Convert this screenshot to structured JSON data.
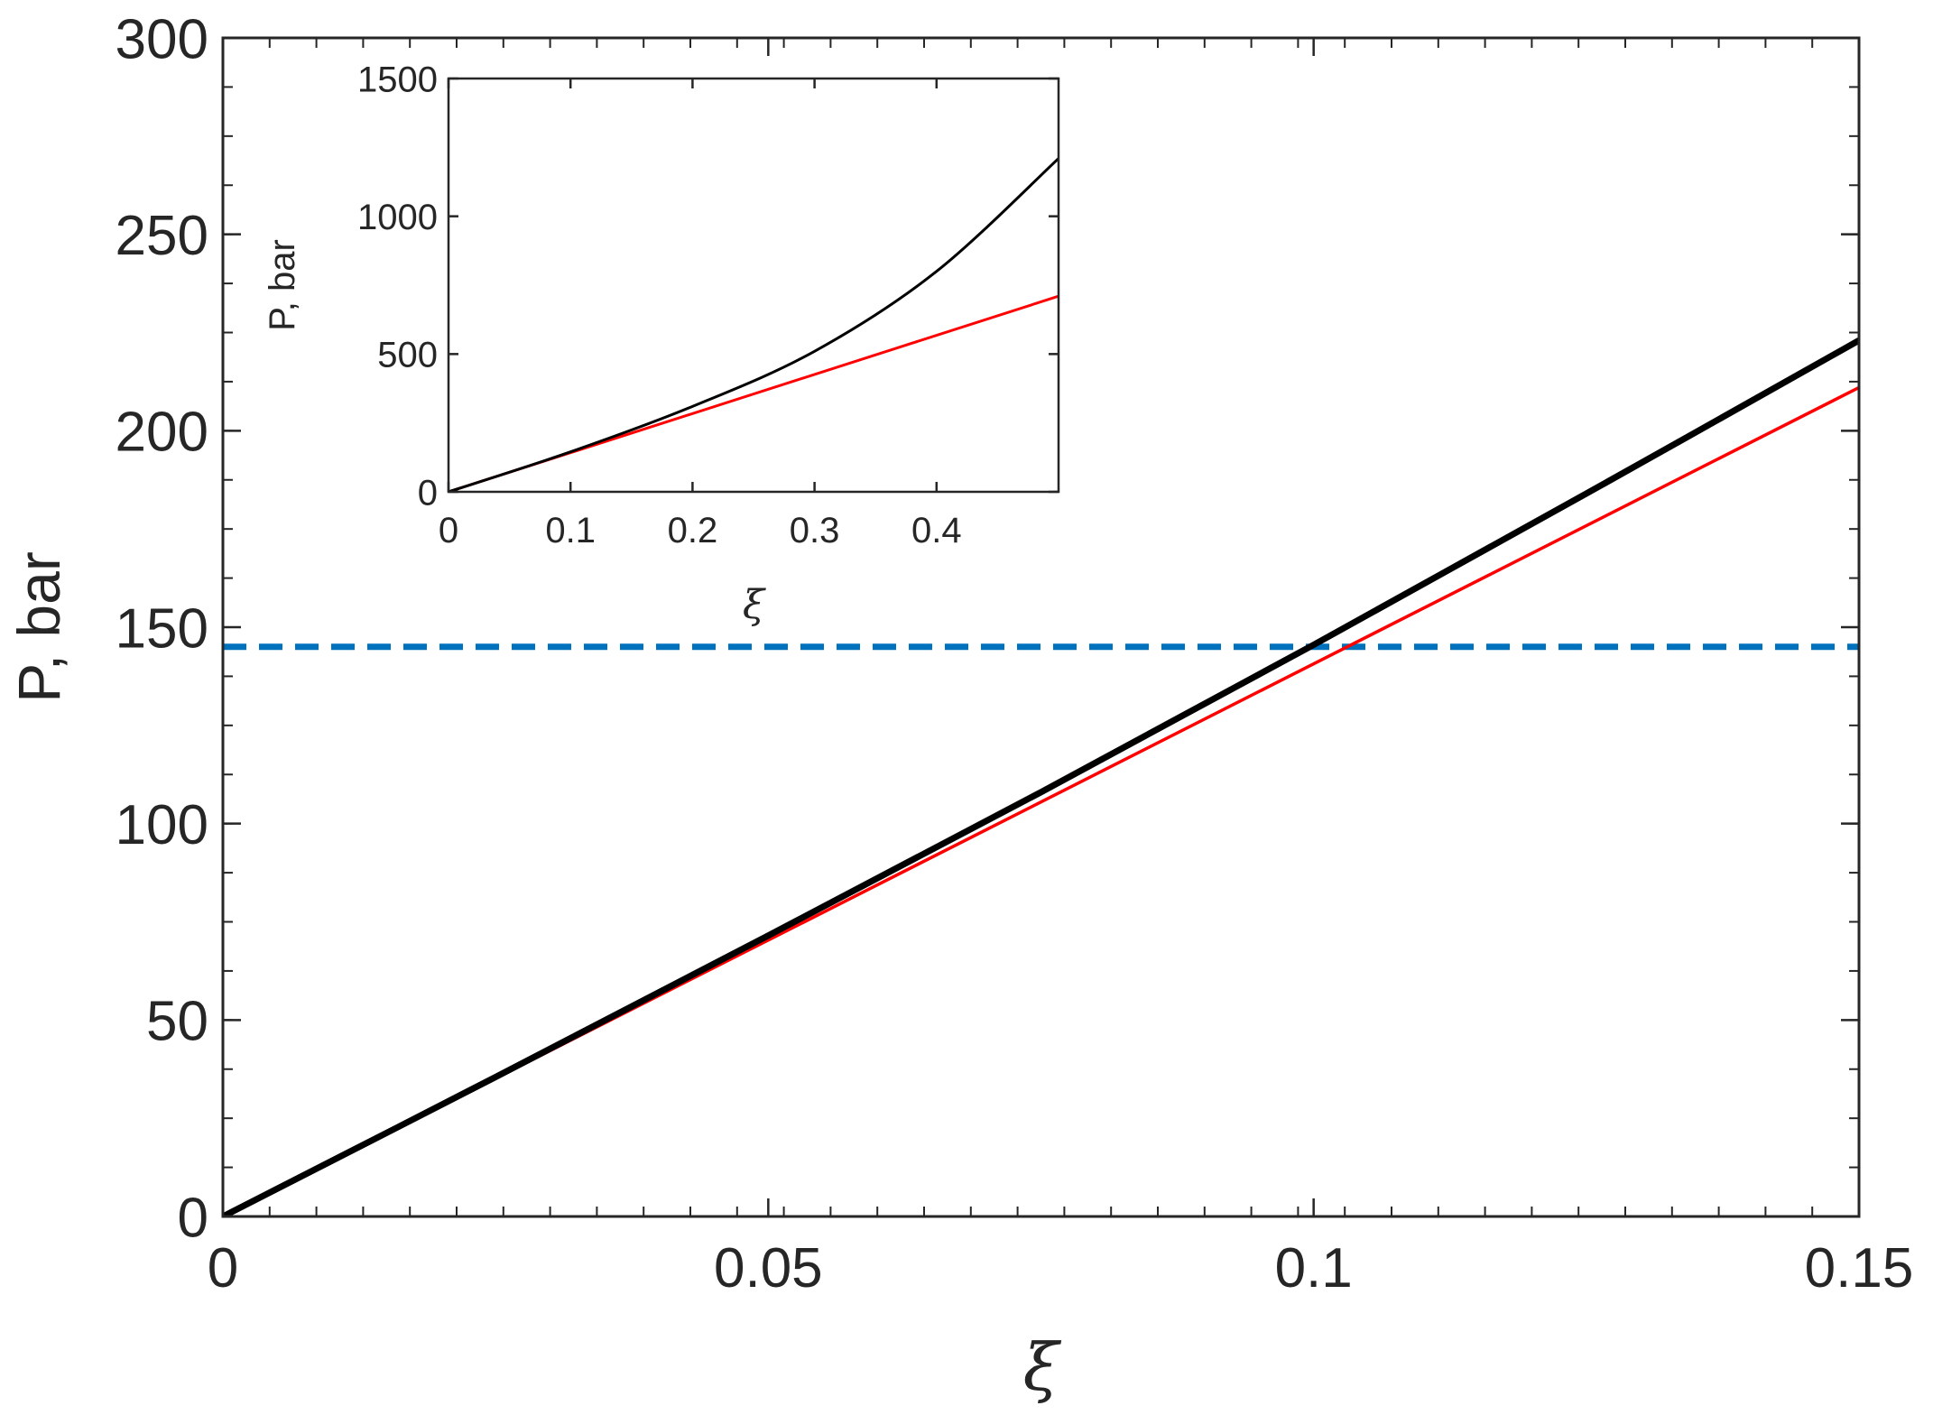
{
  "chart_data": [
    {
      "type": "line",
      "role": "main",
      "xlabel": "ξ",
      "ylabel": "P, bar",
      "xlim": [
        0,
        0.15
      ],
      "ylim": [
        0,
        300
      ],
      "x_ticks": [
        0,
        0.05,
        0.1,
        0.15
      ],
      "x_tick_labels": [
        "0",
        "0.05",
        "0.1",
        "0.15"
      ],
      "y_ticks": [
        0,
        50,
        100,
        150,
        200,
        250,
        300
      ],
      "y_tick_labels": [
        "0",
        "50",
        "100",
        "150",
        "200",
        "250",
        "300"
      ],
      "grid": false,
      "box": true,
      "series": [
        {
          "style": "solid",
          "color": "#000000",
          "width": "thick",
          "x": [
            0,
            0.025,
            0.05,
            0.075,
            0.1,
            0.125,
            0.15
          ],
          "y": [
            0,
            35.5,
            71.5,
            108,
            145.5,
            184,
            223
          ]
        },
        {
          "style": "solid",
          "color": "#ff0000",
          "width": "thin",
          "x": [
            0,
            0.15
          ],
          "y": [
            0,
            211
          ]
        },
        {
          "style": "dashed",
          "color": "#0072bd",
          "width": "thick",
          "x": [
            0,
            0.15
          ],
          "y": [
            145,
            145
          ]
        }
      ]
    },
    {
      "type": "line",
      "role": "inset",
      "xlabel": "ξ",
      "ylabel": "P, bar",
      "xlim": [
        0,
        0.5
      ],
      "ylim": [
        0,
        1500
      ],
      "x_ticks": [
        0,
        0.1,
        0.2,
        0.3,
        0.4
      ],
      "x_tick_labels": [
        "0",
        "0.1",
        "0.2",
        "0.3",
        "0.4"
      ],
      "y_ticks": [
        0,
        500,
        1000,
        1500
      ],
      "y_tick_labels": [
        "0",
        "500",
        "1000",
        "1500"
      ],
      "grid": false,
      "box": true,
      "series": [
        {
          "style": "solid",
          "color": "#000000",
          "width": "thin",
          "x": [
            0,
            0.1,
            0.2,
            0.3,
            0.4,
            0.5
          ],
          "y": [
            0,
            145,
            310,
            510,
            800,
            1210
          ]
        },
        {
          "style": "solid",
          "color": "#ff0000",
          "width": "thin",
          "x": [
            0,
            0.5
          ],
          "y": [
            0,
            710
          ]
        }
      ]
    }
  ]
}
